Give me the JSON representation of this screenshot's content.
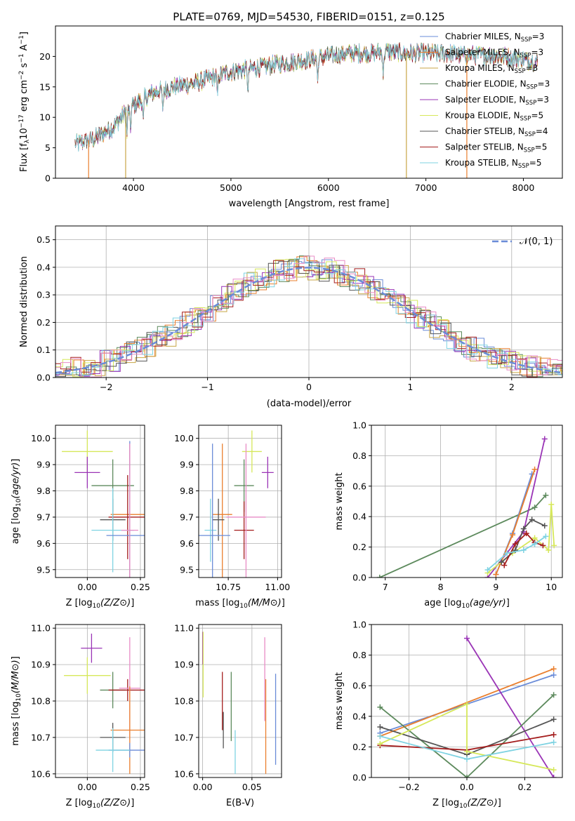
{
  "figure_title": "PLATE=0769, MJD=54530, FIBERID=0151, z=0.125",
  "colors": {
    "chab_miles": "#6a8cd8",
    "salp_miles": "#ea7f2e",
    "krou_miles": "#c8a646",
    "chab_elodie": "#5d8a5d",
    "salp_elodie": "#9a34b6",
    "krou_elodie": "#d6e85a",
    "chab_stelib": "#555555",
    "salp_stelib": "#a41d1d",
    "krou_stelib": "#7fd3e2",
    "pink": "#e88cc6",
    "gauss": "#6a8cd8"
  },
  "chart_data": [
    {
      "id": "spectrum",
      "type": "line",
      "xlabel": "wavelength [Angstrom, rest frame]",
      "ylabel": "Flux [f_λ10^-17 erg cm^-2 s^-1 A^-1]",
      "xlim": [
        3200,
        8400
      ],
      "ylim": [
        0,
        25
      ],
      "xticks": [
        "4000",
        "5000",
        "6000",
        "7000",
        "8000"
      ],
      "yticks": [
        "0",
        "5",
        "10",
        "15",
        "20"
      ],
      "legend_position": "right",
      "continuum": {
        "x": [
          3400,
          3600,
          3800,
          3900,
          4000,
          4100,
          4200,
          4400,
          4600,
          4800,
          5000,
          5200,
          5400,
          5600,
          5800,
          6000,
          6200,
          6400,
          6600,
          6800,
          7000,
          7200,
          7400,
          7600,
          7800,
          8000,
          8150
        ],
        "y": [
          5.5,
          6.5,
          8.5,
          10.5,
          12,
          13,
          14,
          15,
          15.5,
          16.5,
          17.5,
          18,
          18.5,
          19,
          19.5,
          20,
          20.5,
          20.5,
          20.8,
          20.5,
          20.5,
          20.5,
          20.2,
          20.2,
          20,
          19.5,
          19
        ]
      },
      "series": [
        {
          "label": "Chabrier MILES, N",
          "sub": "SSP",
          "tail": "=3"
        },
        {
          "label": "Salpeter MILES, N",
          "sub": "SSP",
          "tail": "=3"
        },
        {
          "label": "Kroupa MILES, N",
          "sub": "SSP",
          "tail": "=3"
        },
        {
          "label": "Chabrier ELODIE, N",
          "sub": "SSP",
          "tail": "=3"
        },
        {
          "label": "Salpeter ELODIE, N",
          "sub": "SSP",
          "tail": "=3"
        },
        {
          "label": "Kroupa ELODIE, N",
          "sub": "SSP",
          "tail": "=5"
        },
        {
          "label": "Chabrier STELIB, N",
          "sub": "SSP",
          "tail": "=4"
        },
        {
          "label": "Salpeter STELIB, N",
          "sub": "SSP",
          "tail": "=5"
        },
        {
          "label": "Kroupa STELIB, N",
          "sub": "SSP",
          "tail": "=5"
        }
      ]
    },
    {
      "id": "residuals",
      "type": "line",
      "xlabel": "(data-model)/error",
      "ylabel": "Normed distribution",
      "xlim": [
        -2.5,
        2.5
      ],
      "ylim": [
        0,
        0.55
      ],
      "xticks": [
        "−2",
        "−1",
        "0",
        "1",
        "2"
      ],
      "yticks": [
        "0.0",
        "0.1",
        "0.2",
        "0.3",
        "0.4",
        "0.5"
      ],
      "grid": true,
      "legend": "𝒩(0, 1)",
      "legend_position": "top-right"
    },
    {
      "id": "age-vs-Z",
      "type": "scatter",
      "xlabel": "Z [log10(Z/Z⊙)]",
      "ylabel": "age  [log10(age/yr)]",
      "xlim": [
        -0.15,
        0.27
      ],
      "ylim": [
        9.47,
        10.05
      ],
      "xticks": [
        "0.00",
        "0.25"
      ],
      "yticks": [
        "9.5",
        "9.6",
        "9.7",
        "9.8",
        "9.9",
        "10.0"
      ],
      "grid": true,
      "points": [
        {
          "c": "krou_elodie",
          "x": 0.0,
          "xe": 0.12,
          "y": 9.95,
          "ye": 0.08
        },
        {
          "c": "salp_elodie",
          "x": 0.0,
          "xe": 0.06,
          "y": 9.87,
          "ye": 0.06
        },
        {
          "c": "chab_elodie",
          "x": 0.12,
          "xe": 0.1,
          "y": 9.82,
          "ye": 0.1
        },
        {
          "c": "salp_miles",
          "x": 0.2,
          "xe": 0.09,
          "y": 9.71,
          "ye": 0.27
        },
        {
          "c": "chab_stelib",
          "x": 0.12,
          "xe": 0.06,
          "y": 9.69,
          "ye": 0.08
        },
        {
          "c": "salp_stelib",
          "x": 0.19,
          "xe": 0.09,
          "y": 9.7,
          "ye": 0.16
        },
        {
          "c": "krou_stelib",
          "x": 0.12,
          "xe": 0.1,
          "y": 9.65,
          "ye": 0.16
        },
        {
          "c": "chab_miles",
          "x": 0.2,
          "xe": 0.11,
          "y": 9.63,
          "ye": 0.36
        },
        {
          "c": "pink",
          "x": 0.2,
          "xe": 0.04,
          "y": 9.65,
          "ye": 0.33
        }
      ]
    },
    {
      "id": "age-vs-mass",
      "type": "scatter",
      "xlabel": "mass [log10(M/M⊙)]",
      "ylabel": "",
      "xlim": [
        10.6,
        11.02
      ],
      "ylim": [
        9.47,
        10.05
      ],
      "xticks": [
        "10.75",
        "11.00"
      ],
      "yticks": [
        "9.5",
        "9.6",
        "9.7",
        "9.8",
        "9.9",
        "10.0"
      ],
      "grid": true,
      "points": [
        {
          "c": "krou_elodie",
          "x": 10.87,
          "xe": 0.05,
          "y": 9.95,
          "ye": 0.08
        },
        {
          "c": "salp_elodie",
          "x": 10.95,
          "xe": 0.03,
          "y": 9.87,
          "ye": 0.06
        },
        {
          "c": "chab_elodie",
          "x": 10.83,
          "xe": 0.05,
          "y": 9.82,
          "ye": 0.1
        },
        {
          "c": "salp_miles",
          "x": 10.72,
          "xe": 0.05,
          "y": 9.71,
          "ye": 0.27
        },
        {
          "c": "chab_stelib",
          "x": 10.7,
          "xe": 0.03,
          "y": 9.69,
          "ye": 0.08
        },
        {
          "c": "salp_stelib",
          "x": 10.83,
          "xe": 0.05,
          "y": 9.65,
          "ye": 0.11
        },
        {
          "c": "krou_stelib",
          "x": 10.66,
          "xe": 0.03,
          "y": 9.65,
          "ye": 0.12
        },
        {
          "c": "chab_miles",
          "x": 10.67,
          "xe": 0.09,
          "y": 9.63,
          "ye": 0.35
        },
        {
          "c": "pink",
          "x": 10.84,
          "xe": 0.1,
          "y": 9.7,
          "ye": 0.28
        }
      ]
    },
    {
      "id": "weight-vs-age",
      "type": "line",
      "xlabel": "age  [log10(age/yr)]",
      "ylabel": "mass weight",
      "xlim": [
        6.75,
        10.2
      ],
      "ylim": [
        0,
        1
      ],
      "xticks": [
        "7",
        "8",
        "9",
        "10"
      ],
      "yticks": [
        "0.0",
        "0.2",
        "0.4",
        "0.6",
        "0.8",
        "1.0"
      ],
      "grid": true,
      "series": [
        {
          "c": "chab_elodie",
          "x": [
            6.9,
            9.7,
            9.9
          ],
          "y": [
            0.0,
            0.46,
            0.54
          ]
        },
        {
          "c": "salp_elodie",
          "x": [
            8.85,
            9.5,
            9.88
          ],
          "y": [
            0.0,
            0.3,
            0.91
          ]
        },
        {
          "c": "chab_miles",
          "x": [
            9.0,
            9.3,
            9.65
          ],
          "y": [
            0.02,
            0.29,
            0.68
          ]
        },
        {
          "c": "salp_miles",
          "x": [
            9.0,
            9.3,
            9.7
          ],
          "y": [
            0.02,
            0.28,
            0.71
          ]
        },
        {
          "c": "krou_elodie",
          "x": [
            8.85,
            9.3,
            9.7,
            9.95,
            10.0,
            10.05
          ],
          "y": [
            0.03,
            0.16,
            0.26,
            0.18,
            0.48,
            0.21
          ]
        },
        {
          "c": "chab_stelib",
          "x": [
            9.1,
            9.35,
            9.5,
            9.65,
            9.88
          ],
          "y": [
            0.1,
            0.18,
            0.32,
            0.38,
            0.34
          ]
        },
        {
          "c": "salp_stelib",
          "x": [
            9.15,
            9.35,
            9.55,
            9.7,
            9.85
          ],
          "y": [
            0.08,
            0.22,
            0.29,
            0.23,
            0.21
          ]
        },
        {
          "c": "krou_stelib",
          "x": [
            8.85,
            9.2,
            9.5,
            9.7,
            9.9
          ],
          "y": [
            0.05,
            0.16,
            0.18,
            0.22,
            0.27
          ]
        }
      ]
    },
    {
      "id": "mass-vs-Z",
      "type": "scatter",
      "xlabel": "Z [log10(Z/Z⊙)]",
      "ylabel": "mass [log10(M/M⊙)]",
      "xlim": [
        -0.15,
        0.27
      ],
      "ylim": [
        10.59,
        11.01
      ],
      "xticks": [
        "0.00",
        "0.25"
      ],
      "yticks": [
        "10.6",
        "10.7",
        "10.8",
        "10.9",
        "11.0"
      ],
      "grid": true,
      "points": [
        {
          "c": "salp_elodie",
          "x": 0.02,
          "xe": 0.05,
          "y": 10.945,
          "ye": 0.04
        },
        {
          "c": "krou_elodie",
          "x": 0.0,
          "xe": 0.11,
          "y": 10.87,
          "ye": 0.05
        },
        {
          "c": "chab_elodie",
          "x": 0.12,
          "xe": 0.06,
          "y": 10.83,
          "ye": 0.05
        },
        {
          "c": "salp_stelib",
          "x": 0.19,
          "xe": 0.09,
          "y": 10.83,
          "ye": 0.03
        },
        {
          "c": "pink",
          "x": 0.2,
          "xe": 0.05,
          "y": 10.835,
          "ye": 0.14
        },
        {
          "c": "salp_miles",
          "x": 0.2,
          "xe": 0.09,
          "y": 10.72,
          "ye": 0.12
        },
        {
          "c": "chab_stelib",
          "x": 0.12,
          "xe": 0.06,
          "y": 10.7,
          "ye": 0.04
        },
        {
          "c": "chab_miles",
          "x": 0.2,
          "xe": 0.1,
          "y": 10.665,
          "ye": 0.02
        },
        {
          "c": "krou_stelib",
          "x": 0.12,
          "xe": 0.08,
          "y": 10.665,
          "ye": 0.06
        }
      ]
    },
    {
      "id": "mass-vs-EBV",
      "type": "scatter",
      "xlabel": "E(B-V)",
      "ylabel": "",
      "xlim": [
        -0.004,
        0.08
      ],
      "ylim": [
        10.59,
        11.01
      ],
      "xticks": [
        "0.00",
        "0.05"
      ],
      "yticks": [
        "10.6",
        "10.7",
        "10.8",
        "10.9",
        "11.0"
      ],
      "grid": true,
      "points": [
        {
          "c": "salp_elodie",
          "x": 0.0,
          "xe": 0,
          "y": 10.945,
          "ye": 0.045
        },
        {
          "c": "krou_elodie",
          "x": 0.0005,
          "xe": 0,
          "y": 10.9,
          "ye": 0.09
        },
        {
          "c": "salp_stelib",
          "x": 0.02,
          "xe": 0,
          "y": 10.8,
          "ye": 0.08
        },
        {
          "c": "chab_elodie",
          "x": 0.029,
          "xe": 0,
          "y": 10.785,
          "ye": 0.095
        },
        {
          "c": "chab_stelib",
          "x": 0.021,
          "xe": 0,
          "y": 10.72,
          "ye": 0.05
        },
        {
          "c": "krou_stelib",
          "x": 0.033,
          "xe": 0,
          "y": 10.66,
          "ye": 0.06
        },
        {
          "c": "pink",
          "x": 0.063,
          "xe": 0,
          "y": 10.86,
          "ye": 0.115
        },
        {
          "c": "salp_miles",
          "x": 0.064,
          "xe": 0,
          "y": 10.73,
          "ye": 0.13
        },
        {
          "c": "chab_miles",
          "x": 0.074,
          "xe": 0,
          "y": 10.75,
          "ye": 0.125
        }
      ]
    },
    {
      "id": "weight-vs-Z",
      "type": "line",
      "xlabel": "Z [log10(Z/Z⊙)]",
      "ylabel": "mass weight",
      "xlim": [
        -0.33,
        0.33
      ],
      "ylim": [
        0,
        1
      ],
      "xticks": [
        "−0.2",
        "0.0",
        "0.2"
      ],
      "yticks": [
        "0.0",
        "0.2",
        "0.4",
        "0.6",
        "0.8",
        "1.0"
      ],
      "grid": true,
      "series": [
        {
          "c": "chab_miles",
          "x": [
            -0.3,
            0.3
          ],
          "y": [
            0.29,
            0.67
          ]
        },
        {
          "c": "salp_miles",
          "x": [
            -0.3,
            0.3
          ],
          "y": [
            0.27,
            0.71
          ]
        },
        {
          "c": "salp_elodie",
          "x": [
            0.0,
            0.3
          ],
          "y": [
            0.91,
            0.0
          ]
        },
        {
          "c": "chab_elodie",
          "x": [
            -0.3,
            0.0,
            0.3
          ],
          "y": [
            0.46,
            0.0,
            0.54
          ]
        },
        {
          "c": "chab_stelib",
          "x": [
            -0.3,
            0.0,
            0.3
          ],
          "y": [
            0.33,
            0.15,
            0.38
          ]
        },
        {
          "c": "salp_stelib",
          "x": [
            -0.3,
            0.0,
            0.3
          ],
          "y": [
            0.21,
            0.18,
            0.28
          ]
        },
        {
          "c": "krou_elodie",
          "x": [
            -0.3,
            0.0,
            0.0,
            0.3
          ],
          "y": [
            0.22,
            0.48,
            0.17,
            0.05
          ]
        },
        {
          "c": "krou_stelib",
          "x": [
            -0.3,
            0.0,
            0.3
          ],
          "y": [
            0.27,
            0.12,
            0.23
          ]
        }
      ]
    }
  ]
}
